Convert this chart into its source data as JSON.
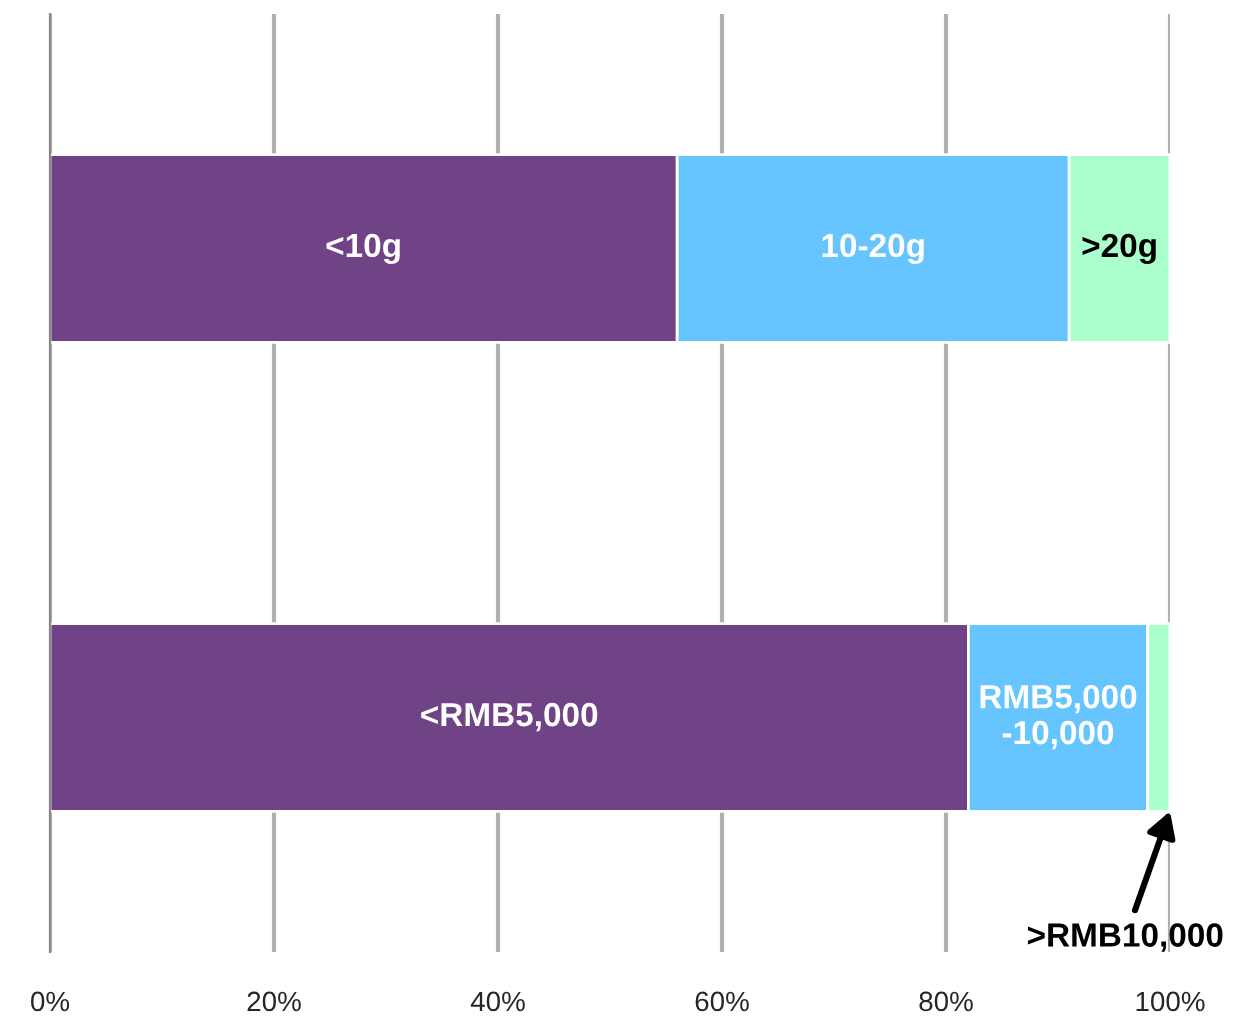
{
  "chart_data": {
    "type": "bar",
    "orientation": "horizontal",
    "stacked": true,
    "categories": [
      null,
      null
    ],
    "series": [
      {
        "color": "#704386",
        "values": [
          56,
          82
        ],
        "value_labels": [
          "<10g",
          "<RMB5,000"
        ]
      },
      {
        "color": "#66c5fe",
        "values": [
          35,
          16
        ],
        "value_labels": [
          "10-20g",
          "RMB5,000\n-10,000"
        ]
      },
      {
        "color": "#aaffcc",
        "values": [
          9,
          2
        ],
        "value_labels": [
          ">20g",
          ">RMB10,000"
        ]
      }
    ],
    "xlim": [
      0,
      100
    ],
    "xticks": [
      {
        "value": 0,
        "label": "0%"
      },
      {
        "value": 20,
        "label": "20%"
      },
      {
        "value": 40,
        "label": "40%"
      },
      {
        "value": 60,
        "label": "60%"
      },
      {
        "value": 80,
        "label": "80%"
      },
      {
        "value": 100,
        "label": "100%"
      }
    ],
    "grid": "x",
    "legend": false
  }
}
